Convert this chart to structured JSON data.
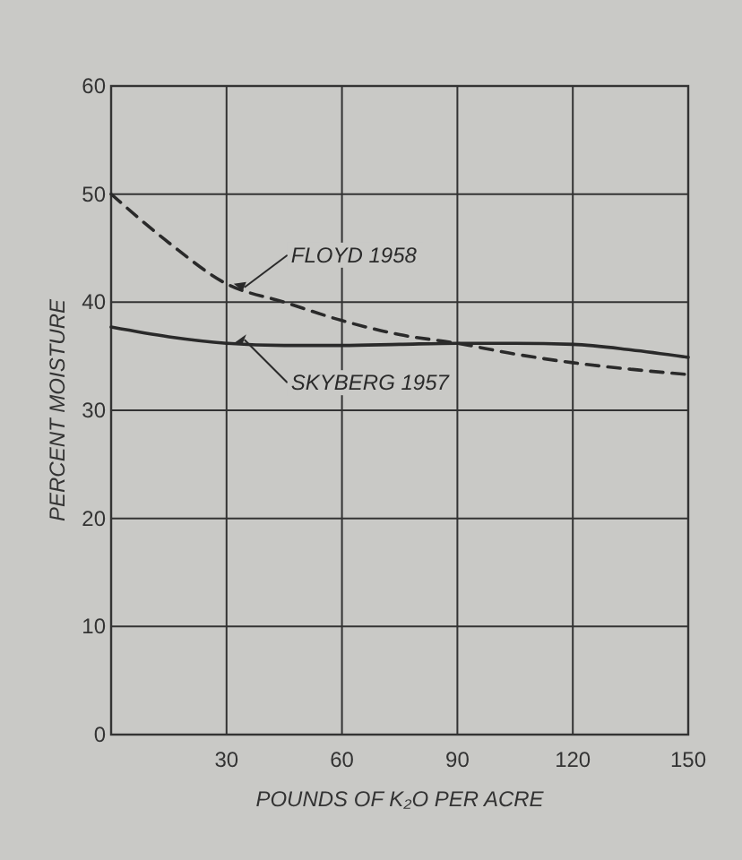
{
  "chart_data": {
    "type": "line",
    "xlabel": "POUNDS OF K₂O PER ACRE",
    "ylabel": "PERCENT MOISTURE",
    "xlim": [
      0,
      150
    ],
    "xticks": [
      {
        "value": 0,
        "label": null
      },
      30,
      60,
      90,
      120,
      150
    ],
    "ylim": [
      0,
      60
    ],
    "yticks": [
      0,
      10,
      20,
      30,
      40,
      50,
      60
    ],
    "grid": true,
    "marker": "none",
    "series": [
      {
        "name": "FLOYD 1958",
        "color": "#2a2a2a",
        "line_style": "dashed",
        "x": [
          0,
          15,
          30,
          45,
          60,
          75,
          90,
          105,
          120,
          135,
          150
        ],
        "values": [
          50,
          45.5,
          41.7,
          40,
          38.3,
          37,
          36.2,
          35.2,
          34.4,
          33.8,
          33.3
        ]
      },
      {
        "name": "SKYBERG 1957",
        "color": "#2a2a2a",
        "line_style": "solid",
        "x": [
          0,
          15,
          30,
          45,
          60,
          75,
          90,
          105,
          120,
          135,
          150
        ],
        "values": [
          37.7,
          36.8,
          36.2,
          36,
          36,
          36.1,
          36.2,
          36.2,
          36.1,
          35.6,
          34.9
        ]
      }
    ]
  }
}
